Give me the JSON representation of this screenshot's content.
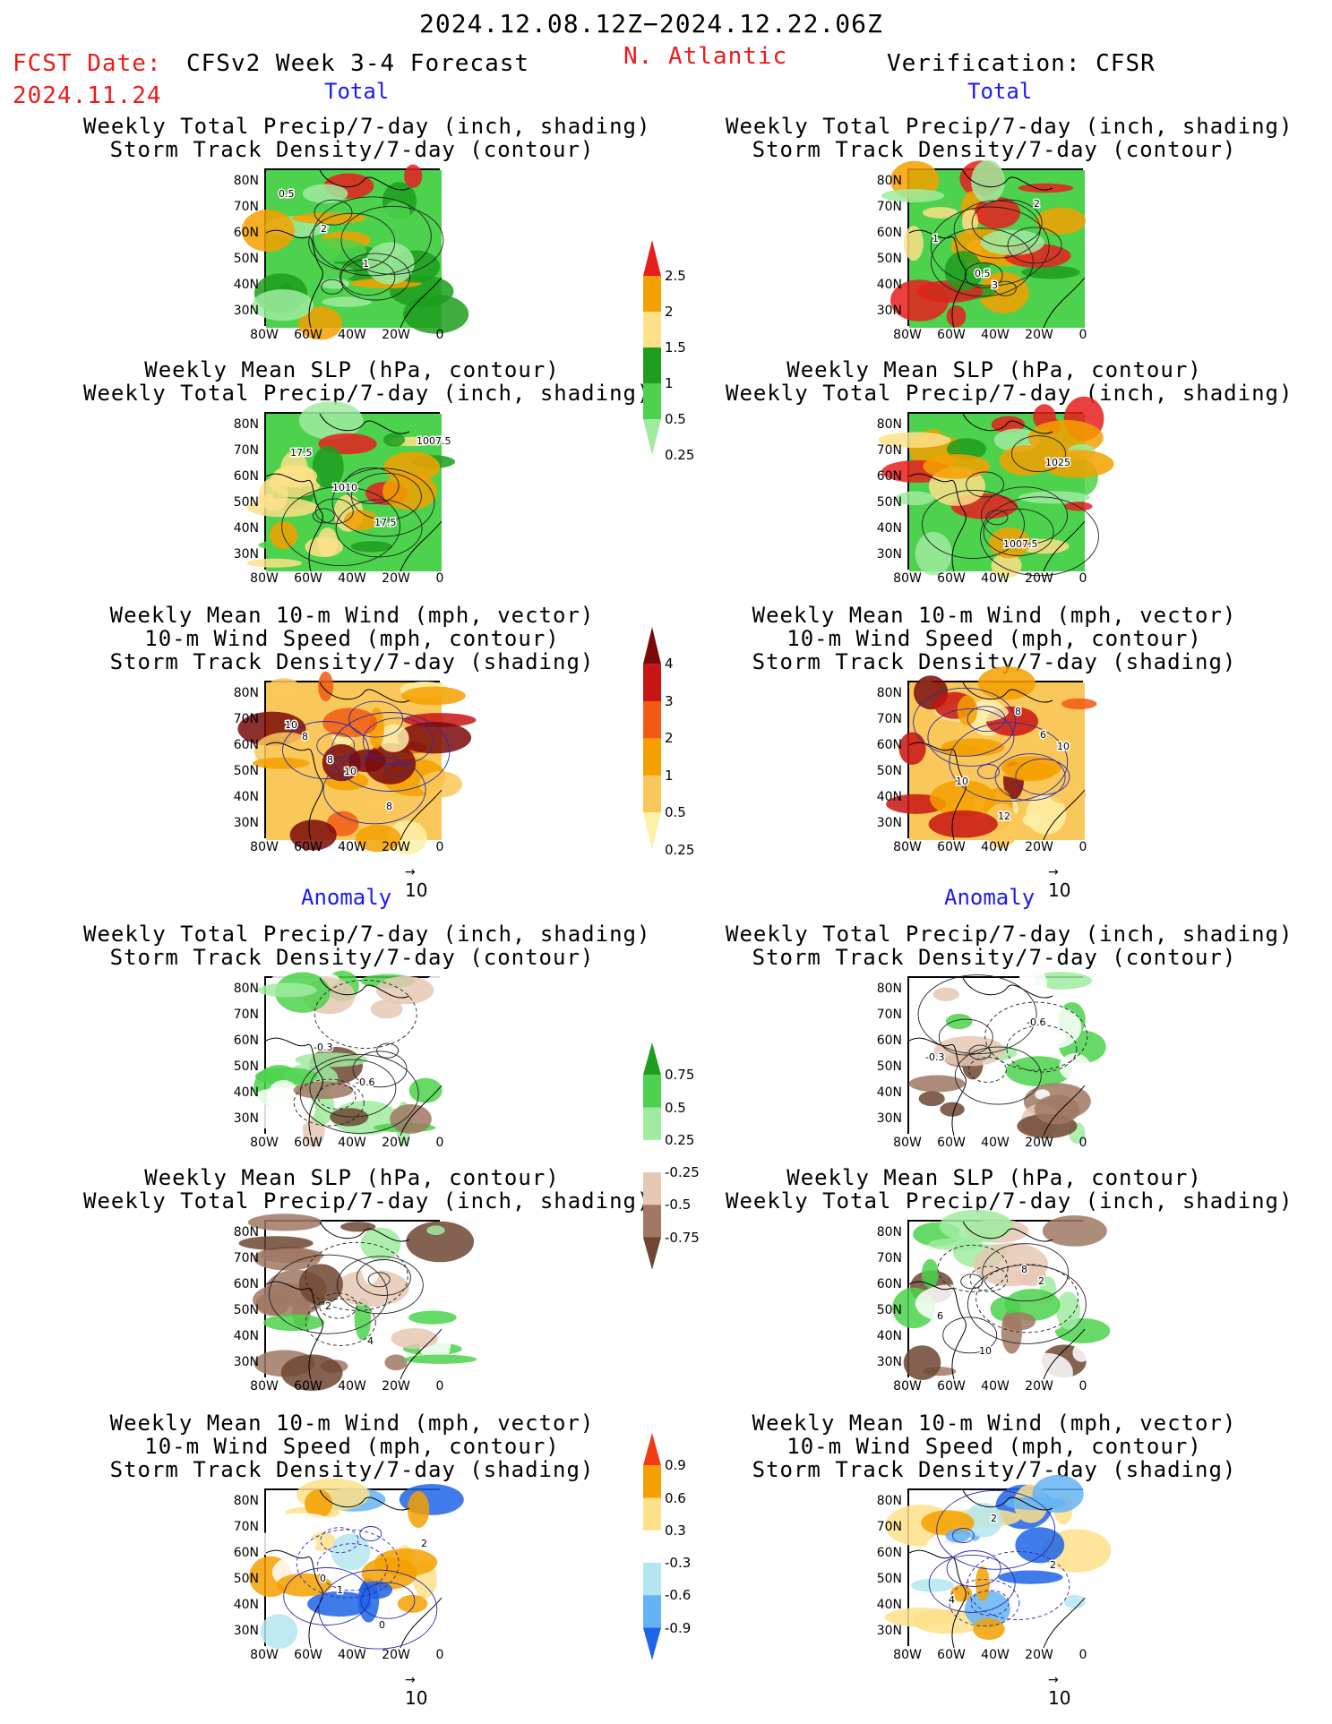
{
  "header": {
    "period": "2024.12.08.12Z−2024.12.22.06Z",
    "fcst_label": "FCST Date:",
    "fcst_date": "2024.11.24",
    "model": "CFSv2 Week 3-4 Forecast",
    "region": "N. Atlantic",
    "verification": "Verification: CFSR"
  },
  "sections": {
    "total": "Total",
    "anomaly": "Anomaly"
  },
  "titles": {
    "precip_track": [
      "Weekly Total Precip/7-day (inch, shading)",
      "Storm Track Density/7-day (contour)"
    ],
    "slp_precip": [
      "Weekly Mean SLP (hPa, contour)",
      "Weekly Total Precip/7-day (inch, shading)"
    ],
    "wind_track": [
      "Weekly Mean 10-m Wind (mph, vector)",
      "10-m Wind Speed (mph, contour)",
      "Storm Track Density/7-day (shading)"
    ]
  },
  "axes": {
    "lat": [
      "80N",
      "70N",
      "60N",
      "50N",
      "40N",
      "30N"
    ],
    "lon": [
      "80W",
      "60W",
      "40W",
      "20W",
      "0"
    ]
  },
  "vector_ref": "10",
  "panels": [
    {
      "id": "fc-total-precip",
      "labels": [
        "0.5",
        "2",
        "1"
      ],
      "kind": "precip"
    },
    {
      "id": "fc-total-slp",
      "labels": [
        "17.5",
        "1010",
        "17.5",
        "1007.5"
      ],
      "kind": "precip"
    },
    {
      "id": "fc-total-wind",
      "labels": [
        "8",
        "10",
        "8",
        "10",
        "8"
      ],
      "kind": "track"
    },
    {
      "id": "fc-anom-precip",
      "labels": [
        "-0.3",
        "-0.6"
      ],
      "kind": "precip-anom"
    },
    {
      "id": "fc-anom-slp",
      "labels": [
        "2",
        "4"
      ],
      "kind": "precip-anom"
    },
    {
      "id": "fc-anom-wind",
      "labels": [
        "1",
        "0",
        "2",
        "0"
      ],
      "kind": "track-anom"
    },
    {
      "id": "vf-total-precip",
      "labels": [
        "3",
        "2",
        "1",
        "0.5"
      ],
      "kind": "precip"
    },
    {
      "id": "vf-total-slp",
      "labels": [
        "1007.5",
        "1025"
      ],
      "kind": "precip"
    },
    {
      "id": "vf-total-wind",
      "labels": [
        "8",
        "10",
        "10",
        "12",
        "6"
      ],
      "kind": "track"
    },
    {
      "id": "vf-anom-precip",
      "labels": [
        "-0.6",
        "-0.3"
      ],
      "kind": "precip-anom"
    },
    {
      "id": "vf-anom-slp",
      "labels": [
        "2",
        "6",
        "10",
        "8"
      ],
      "kind": "precip-anom"
    },
    {
      "id": "vf-anom-wind",
      "labels": [
        "2",
        "4",
        "2"
      ],
      "kind": "track-anom"
    }
  ],
  "colorbars": [
    {
      "id": "cbar-precip-total",
      "ticks": [
        "2.5",
        "2",
        "1.5",
        "1",
        "0.5",
        "0.25"
      ],
      "colors": [
        "#e61e1e",
        "#f5a000",
        "#fde08a",
        "#1e9e1e",
        "#4cd24c",
        "#a0eba0"
      ]
    },
    {
      "id": "cbar-track-total",
      "ticks": [
        "4",
        "3",
        "2",
        "1",
        "0.5",
        "0.25"
      ],
      "colors": [
        "#7a0a0a",
        "#c81414",
        "#f05a14",
        "#f5a000",
        "#fac85a",
        "#fdf0a8"
      ]
    },
    {
      "id": "cbar-precip-anom",
      "ticks": [
        "0.75",
        "0.5",
        "0.25",
        "-0.25",
        "-0.5",
        "-0.75"
      ],
      "colors": [
        "#1e9e1e",
        "#4cd24c",
        "#a0eba0",
        "#ffffff",
        "#e6c8b4",
        "#a07864",
        "#6e4632"
      ]
    },
    {
      "id": "cbar-track-anom",
      "ticks": [
        "0.9",
        "0.6",
        "0.3",
        "-0.3",
        "-0.6",
        "-0.9"
      ],
      "colors": [
        "#f03c14",
        "#f5a000",
        "#fde08a",
        "#ffffff",
        "#b4e6f0",
        "#64b4f5",
        "#1e64e6"
      ]
    }
  ]
}
